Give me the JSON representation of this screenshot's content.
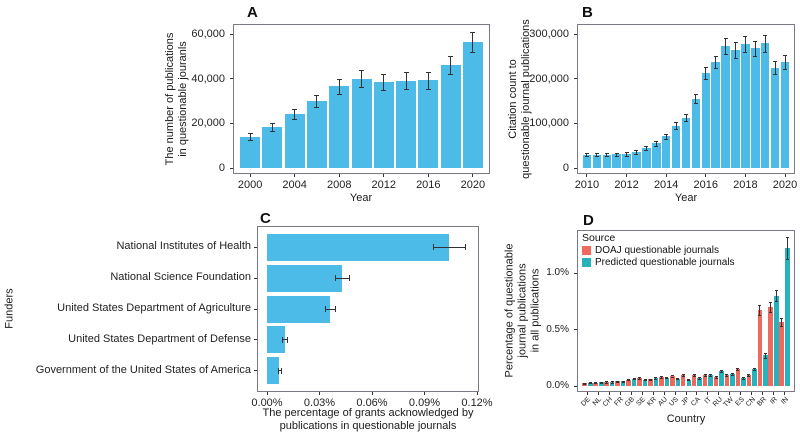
{
  "colors": {
    "bar_blue": "#4DBBE8",
    "doaj_red": "#EF6A5E",
    "predicted_teal": "#27B2BC",
    "axis_text": "#222222",
    "error_bar": "#333333",
    "panel_border": "#7a7a86"
  },
  "chart_data": [
    {
      "panel": "A",
      "type": "bar",
      "title_label": "A",
      "ylabel_lines": [
        "The number of publications",
        "in questionable jouranls"
      ],
      "xlabel": "Year",
      "categories": [
        2000,
        2002,
        2004,
        2006,
        2008,
        2010,
        2012,
        2014,
        2016,
        2018,
        2020
      ],
      "values": [
        14000,
        18500,
        24000,
        30000,
        36500,
        40000,
        38500,
        39000,
        39200,
        46000,
        56500
      ],
      "errors": [
        1500,
        1800,
        2200,
        2600,
        3200,
        3800,
        3600,
        3800,
        3800,
        4000,
        4500
      ],
      "yticks": [
        {
          "value": 0,
          "label": "0"
        },
        {
          "value": 20000,
          "label": "20,000"
        },
        {
          "value": 40000,
          "label": "40,000"
        },
        {
          "value": 60000,
          "label": "60,000"
        }
      ],
      "xtick_indices": [
        0,
        2,
        4,
        6,
        8,
        10
      ],
      "ylim": [
        0,
        62000
      ],
      "bar_color_key": "bar_blue",
      "grid": false
    },
    {
      "panel": "B",
      "type": "bar",
      "title_label": "B",
      "ylabel_lines": [
        "Citation count to",
        "questionable journal publications"
      ],
      "xlabel": "Year",
      "categories": [
        2010,
        2010.5,
        2011,
        2011.5,
        2012,
        2012.5,
        2013,
        2013.5,
        2014,
        2014.5,
        2015,
        2015.5,
        2016,
        2016.5,
        2017,
        2017.5,
        2018,
        2018.5,
        2019,
        2019.5,
        2020
      ],
      "values": [
        30000,
        30000,
        30000,
        30500,
        31000,
        35000,
        45000,
        55000,
        71000,
        95000,
        113000,
        155000,
        213000,
        237000,
        273000,
        264000,
        277000,
        268000,
        279000,
        225000,
        238000
      ],
      "errors": [
        4000,
        4000,
        4000,
        4000,
        4000,
        4500,
        5000,
        5500,
        6000,
        7000,
        8000,
        10000,
        13000,
        14000,
        18000,
        17000,
        18000,
        17000,
        19000,
        15000,
        16000
      ],
      "yticks": [
        {
          "value": 0,
          "label": "0"
        },
        {
          "value": 100000,
          "label": "100,000"
        },
        {
          "value": 200000,
          "label": "200,000"
        },
        {
          "value": 300000,
          "label": "300,000"
        }
      ],
      "xtick_indices": [
        0,
        4,
        8,
        12,
        16,
        20
      ],
      "ylim": [
        0,
        310000
      ],
      "bar_color_key": "bar_blue",
      "grid": false
    },
    {
      "panel": "C",
      "type": "hbar",
      "title_label": "C",
      "ylabel": "Funders",
      "xlabel_lines": [
        "The percentage of grants acknowledged by",
        "publications in questionable journals"
      ],
      "categories": [
        "National Institutes of Health",
        "National Science Foundation",
        "United States Department of Agriculture",
        "United States Department of Defense",
        "Government of the United States of America"
      ],
      "values": [
        0.104,
        0.043,
        0.036,
        0.01,
        0.007
      ],
      "errors": [
        0.009,
        0.004,
        0.003,
        0.0015,
        0.001
      ],
      "xticks": [
        {
          "value": 0,
          "label": "0.00%"
        },
        {
          "value": 0.03,
          "label": "0.03%"
        },
        {
          "value": 0.06,
          "label": "0.06%"
        },
        {
          "value": 0.09,
          "label": "0.09%"
        },
        {
          "value": 0.12,
          "label": "0.12%"
        }
      ],
      "xlim": [
        0,
        0.125
      ],
      "bar_color_key": "bar_blue",
      "grid": false
    },
    {
      "panel": "D",
      "type": "grouped_bar",
      "title_label": "D",
      "ylabel_lines": [
        "Percentage of questionable",
        "journal publications",
        "in all publications"
      ],
      "xlabel": "Country",
      "legend_title": "Source",
      "legend_position": "top-left-inside",
      "categories": [
        "DE",
        "NL",
        "CH",
        "FR",
        "GB",
        "SE",
        "KR",
        "AU",
        "US",
        "JP",
        "CA",
        "IT",
        "RU",
        "TW",
        "ES",
        "CN",
        "BR",
        "IR",
        "IN"
      ],
      "series": [
        {
          "name": "DOAJ questionable journals",
          "color_key": "doaj_red",
          "values": [
            0.025,
            0.03,
            0.035,
            0.04,
            0.055,
            0.07,
            0.06,
            0.08,
            0.09,
            0.1,
            0.1,
            0.1,
            0.08,
            0.1,
            0.15,
            0.1,
            0.67,
            0.7,
            0.57
          ],
          "errors": [
            0.004,
            0.004,
            0.005,
            0.005,
            0.006,
            0.007,
            0.006,
            0.007,
            0.006,
            0.008,
            0.008,
            0.008,
            0.008,
            0.009,
            0.012,
            0.008,
            0.045,
            0.045,
            0.035
          ]
        },
        {
          "name": "Predicted questionable journals",
          "color_key": "predicted_teal",
          "values": [
            0.028,
            0.033,
            0.035,
            0.04,
            0.065,
            0.055,
            0.07,
            0.075,
            0.065,
            0.055,
            0.07,
            0.1,
            0.13,
            0.11,
            0.07,
            0.15,
            0.27,
            0.8,
            1.22
          ],
          "errors": [
            0.004,
            0.004,
            0.005,
            0.005,
            0.006,
            0.006,
            0.007,
            0.007,
            0.006,
            0.006,
            0.007,
            0.008,
            0.01,
            0.009,
            0.007,
            0.01,
            0.025,
            0.05,
            0.1
          ]
        }
      ],
      "yticks": [
        {
          "value": 0,
          "label": "0.0%"
        },
        {
          "value": 0.5,
          "label": "0.5%"
        },
        {
          "value": 1.0,
          "label": "1.0%"
        }
      ],
      "ylim": [
        0,
        1.35
      ],
      "grid": false
    }
  ]
}
